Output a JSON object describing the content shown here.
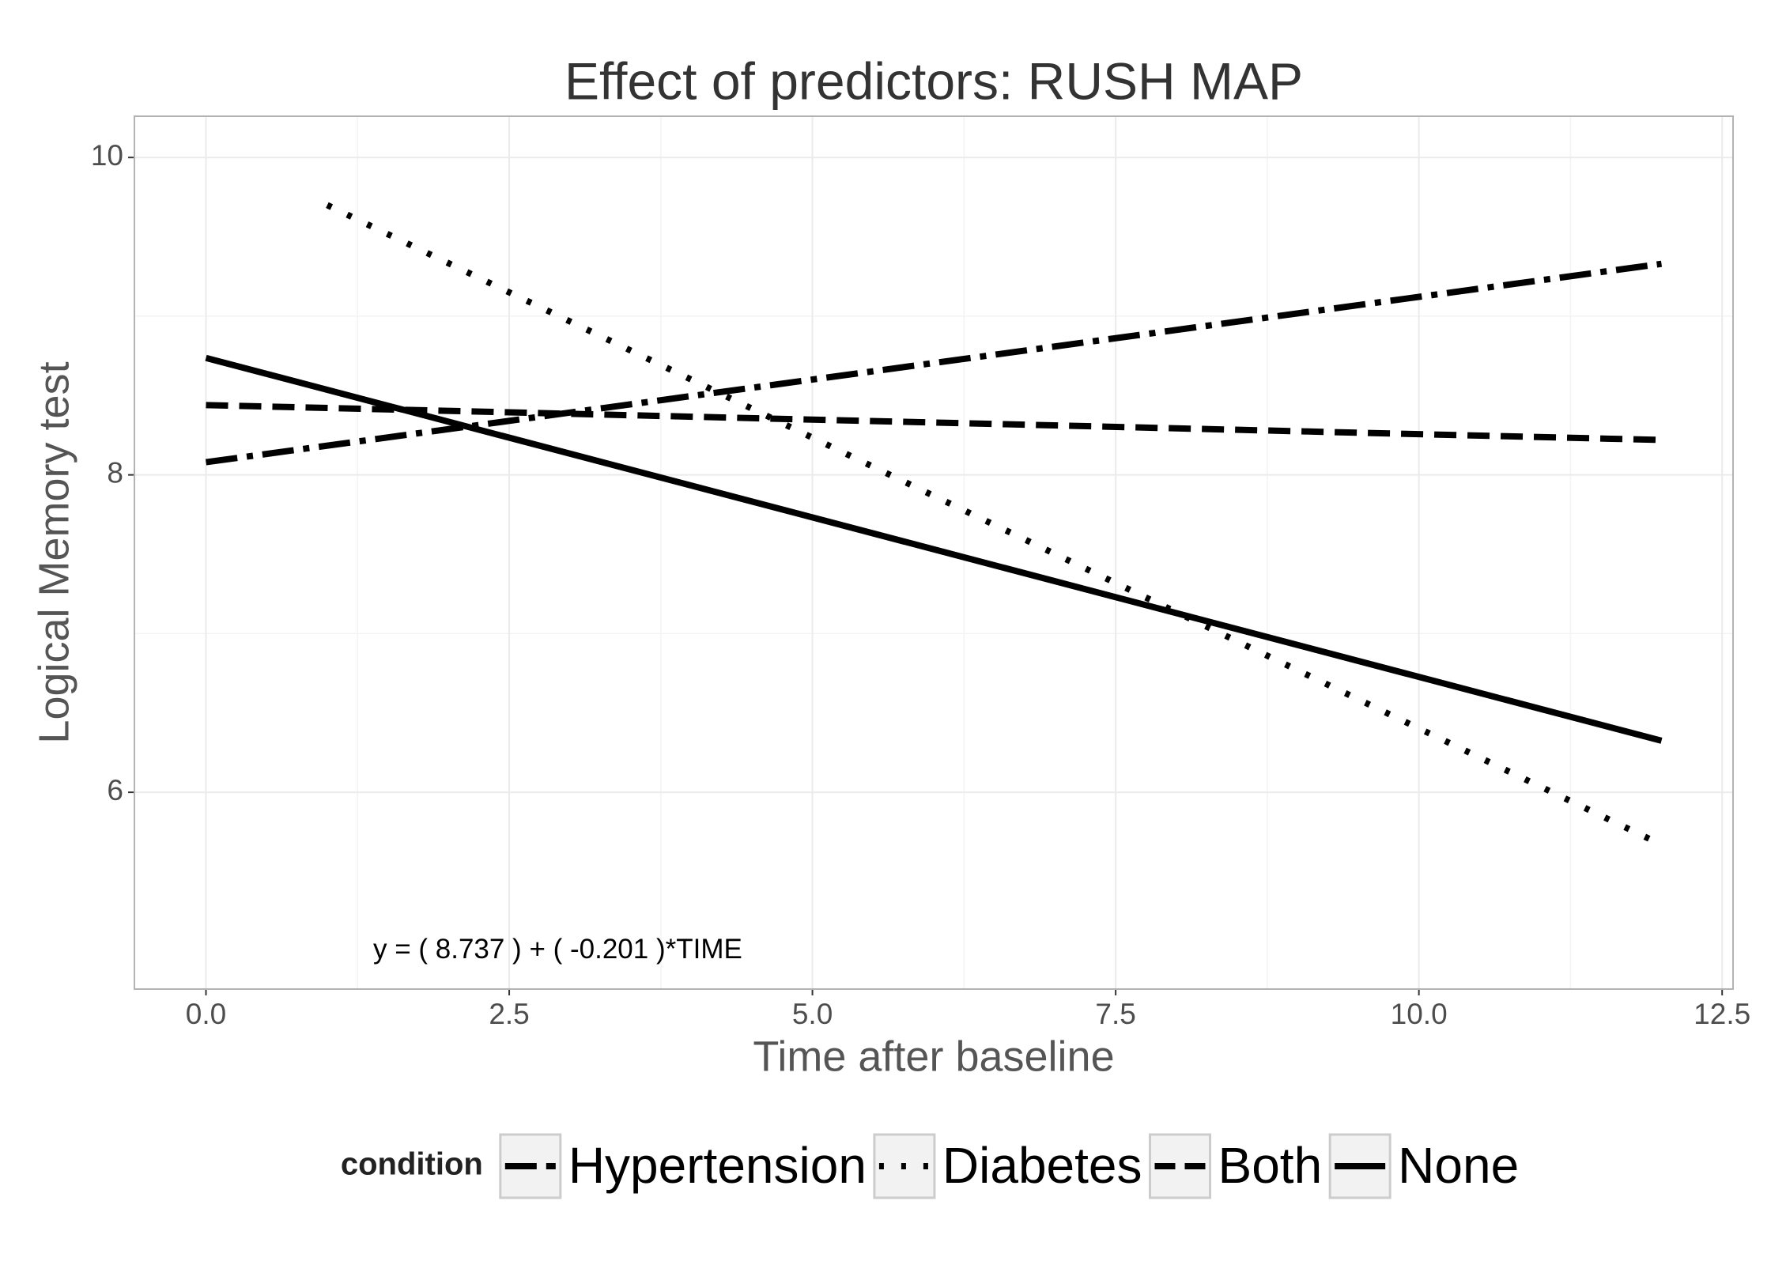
{
  "chart_data": {
    "type": "line",
    "title": "Effect of predictors: RUSH MAP",
    "x_label": "Time after baseline",
    "y_label": "Logical Memory test",
    "xlim": [
      -0.59,
      12.59
    ],
    "ylim": [
      4.76,
      10.26
    ],
    "xticks": [
      {
        "value": 0,
        "label": "0.0"
      },
      2.5,
      {
        "value": 5,
        "label": "5.0"
      },
      7.5,
      {
        "value": 10,
        "label": "10.0"
      },
      12.5
    ],
    "yticks": [
      6,
      8,
      10
    ],
    "grid": true,
    "legend_title": "condition",
    "legend_position": "bottom",
    "annotation": {
      "text": "y = ( 8.737 ) + ( -0.201 )*TIME",
      "x": 2.9,
      "y": 5.0
    },
    "series": [
      {
        "name": "Hypertension",
        "color": "#000000",
        "linetype": "longdash-dot",
        "x": [
          0,
          12
        ],
        "values": [
          8.08,
          9.33
        ]
      },
      {
        "name": "Diabetes",
        "color": "#000000",
        "linetype": "dotted",
        "x": [
          1,
          12
        ],
        "values": [
          9.7,
          5.67
        ]
      },
      {
        "name": "Both",
        "color": "#000000",
        "linetype": "dashed",
        "x": [
          0,
          12
        ],
        "values": [
          8.44,
          8.22
        ]
      },
      {
        "name": "None",
        "color": "#000000",
        "linetype": "solid",
        "x": [
          0,
          12
        ],
        "values": [
          8.737,
          6.325
        ]
      }
    ]
  }
}
